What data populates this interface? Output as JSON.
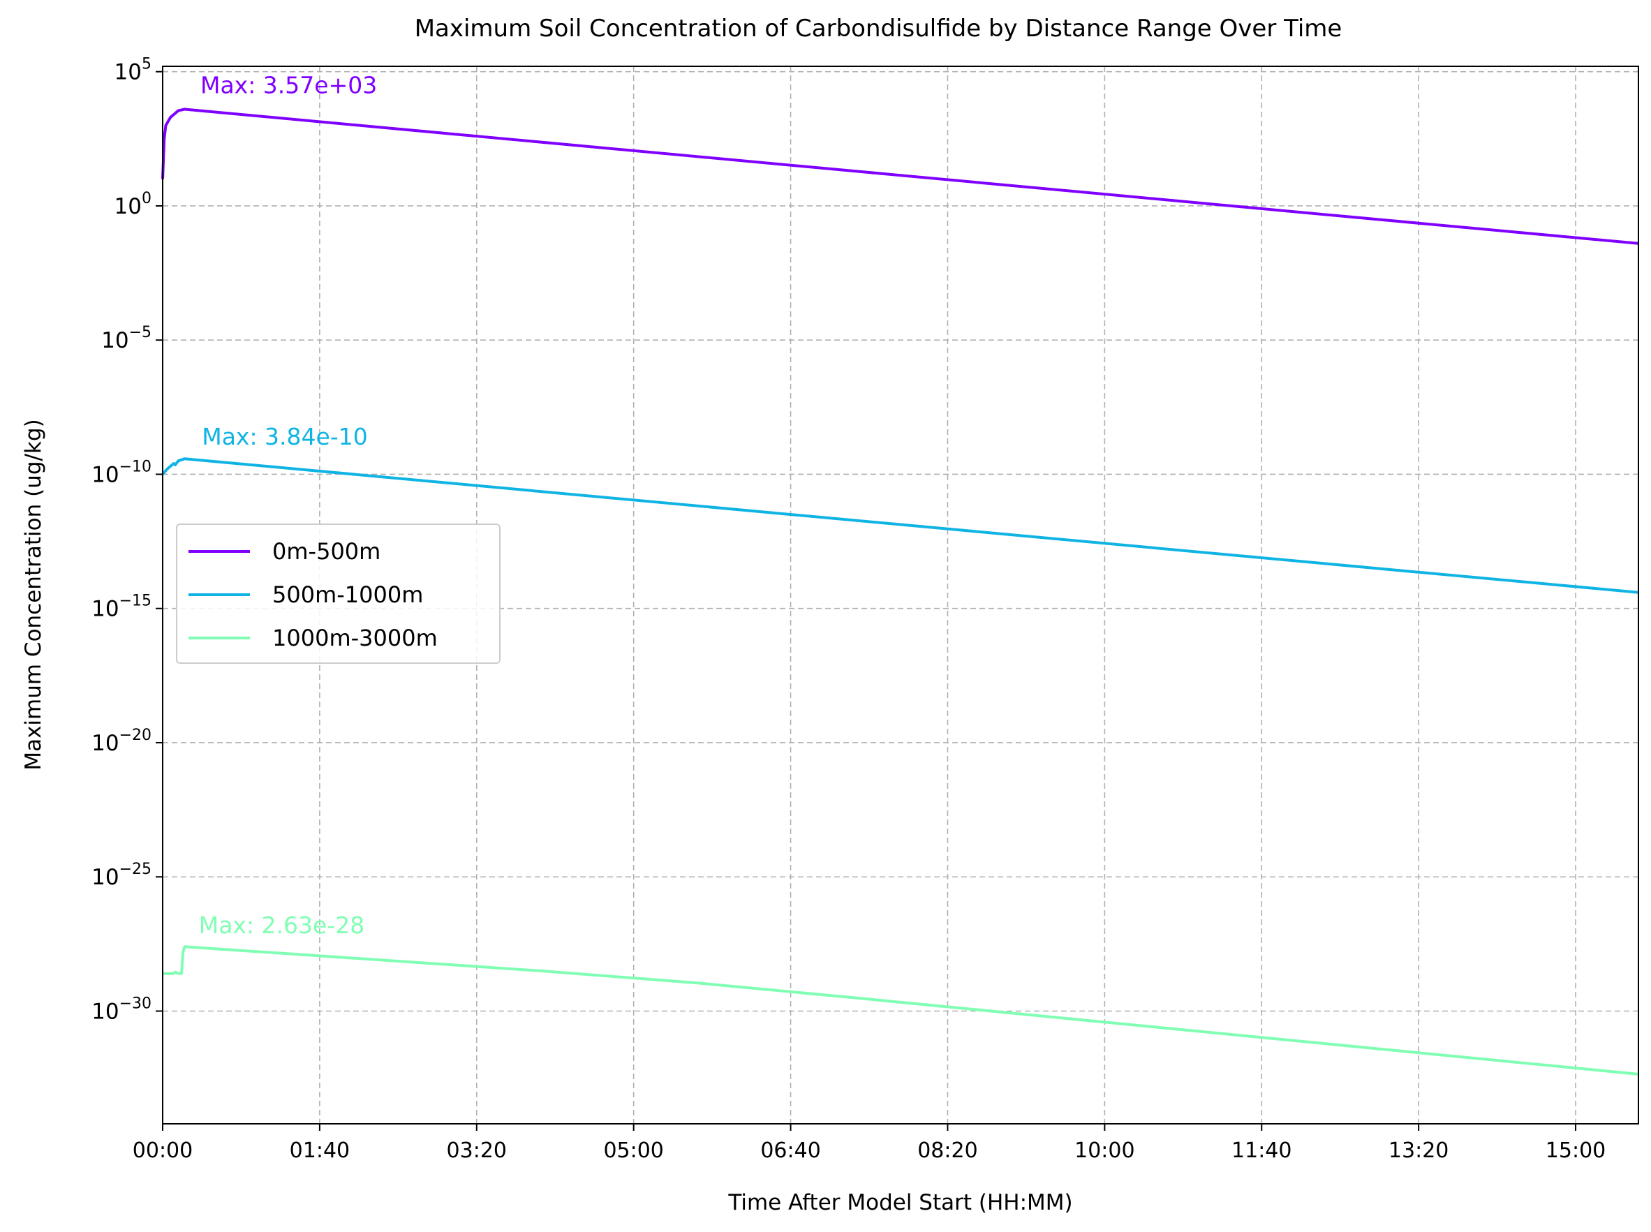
{
  "chart_data": {
    "type": "line",
    "title": "Maximum Soil Concentration of Carbondisulfide by Distance Range Over Time",
    "xlabel": "Time After Model Start (HH:MM)",
    "ylabel": "Maximum Concentration (ug/kg)",
    "x_unit": "minutes after model start",
    "xlim": [
      0,
      940
    ],
    "x_ticks": [
      0,
      100,
      200,
      300,
      400,
      500,
      600,
      700,
      800,
      900
    ],
    "x_tick_labels": [
      "00:00",
      "01:40",
      "03:20",
      "05:00",
      "06:40",
      "08:20",
      "10:00",
      "11:40",
      "13:20",
      "15:00"
    ],
    "y_scale": "log",
    "ylim_log10": [
      -34.2,
      5.2
    ],
    "y_ticks_log10": [
      5,
      0,
      -5,
      -10,
      -15,
      -20,
      -25,
      -30
    ],
    "y_tick_labels": [
      {
        "base": "10",
        "exp": "5"
      },
      {
        "base": "10",
        "exp": "0"
      },
      {
        "base": "10",
        "exp": "−5"
      },
      {
        "base": "10",
        "exp": "−10"
      },
      {
        "base": "10",
        "exp": "−15"
      },
      {
        "base": "10",
        "exp": "−20"
      },
      {
        "base": "10",
        "exp": "−25"
      },
      {
        "base": "10",
        "exp": "−30"
      }
    ],
    "grid": true,
    "legend_position": "center-left",
    "series": [
      {
        "name": "0m-500m",
        "color": "#8000ff",
        "points": [
          [
            0,
            1.0
          ],
          [
            1,
            2.5
          ],
          [
            2,
            3.0
          ],
          [
            5,
            3.3
          ],
          [
            10,
            3.55
          ],
          [
            14,
            3.6
          ],
          [
            940,
            -1.4
          ]
        ],
        "annotation": "Max: 3.57e+03",
        "annotation_at": [
          24,
          4.2
        ]
      },
      {
        "name": "500m-1000m",
        "color": "#0fb4e4",
        "points": [
          [
            0,
            -10.0
          ],
          [
            3,
            -9.8
          ],
          [
            5,
            -9.7
          ],
          [
            7,
            -9.6
          ],
          [
            8,
            -9.65
          ],
          [
            10,
            -9.5
          ],
          [
            14,
            -9.42
          ],
          [
            940,
            -14.4
          ]
        ],
        "annotation": "Max: 3.84e-10",
        "annotation_at": [
          25,
          -8.9
        ]
      },
      {
        "name": "1000m-3000m",
        "color": "#80ffb4",
        "points": [
          [
            0,
            -28.6
          ],
          [
            7,
            -28.6
          ],
          [
            8,
            -28.55
          ],
          [
            10,
            -28.6
          ],
          [
            12,
            -28.6
          ],
          [
            13,
            -27.8
          ],
          [
            14,
            -27.6
          ],
          [
            240,
            -28.5
          ],
          [
            340,
            -28.95
          ],
          [
            440,
            -29.5
          ],
          [
            940,
            -32.35
          ]
        ],
        "annotation": "Max: 2.63e-28",
        "annotation_at": [
          23,
          -27.1
        ]
      }
    ]
  }
}
